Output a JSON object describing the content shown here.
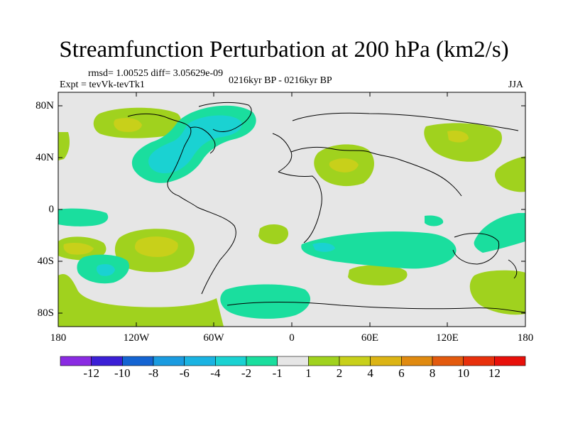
{
  "title": "Streamfunction Perturbation at 200 hPa (km2/s)",
  "stats": "rmsd= 1.00525 diff= 3.05629e-09",
  "experiment": "Expt = tevVk-tevTk1",
  "period": "0216kyr BP - 0216kyr BP",
  "season": "JJA",
  "map": {
    "lat_labels": [
      "80N",
      "40N",
      "0",
      "40S",
      "80S"
    ],
    "lon_labels": [
      "180",
      "120W",
      "60W",
      "0",
      "60E",
      "120E",
      "180"
    ]
  },
  "colorbar": {
    "labels": [
      "-12",
      "-10",
      "-8",
      "-6",
      "-4",
      "-2",
      "-1",
      "1",
      "2",
      "4",
      "6",
      "8",
      "10",
      "12"
    ],
    "colors": [
      "#8a2be2",
      "#3b1fd6",
      "#1464d2",
      "#1a9be0",
      "#1ab3e2",
      "#1ad2d2",
      "#1ade9e",
      "#e6e6e6",
      "#a0d21e",
      "#c8d01a",
      "#dcb414",
      "#e08a10",
      "#e35a0e",
      "#e8300c",
      "#e8100a"
    ]
  }
}
